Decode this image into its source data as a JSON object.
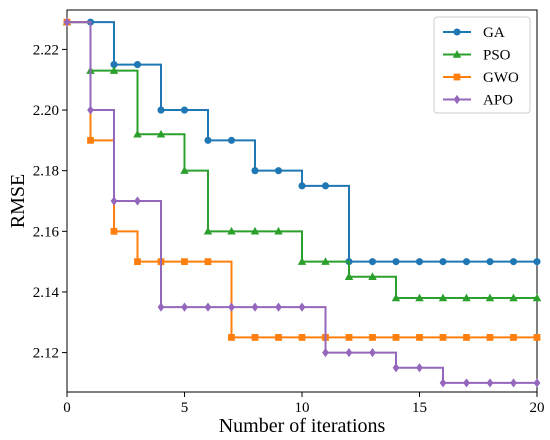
{
  "chart_data": {
    "type": "line",
    "xlabel": "Number of iterations",
    "ylabel": "RMSE",
    "xlim": [
      0,
      20
    ],
    "ylim": [
      2.107,
      2.233
    ],
    "xticks": [
      0,
      5,
      10,
      15,
      20
    ],
    "yticks": [
      2.12,
      2.14,
      2.16,
      2.18,
      2.2,
      2.22
    ],
    "ytick_labels": [
      "2.12",
      "2.14",
      "2.16",
      "2.18",
      "2.20",
      "2.22"
    ],
    "grid": false,
    "legend_position": "top-right",
    "x": [
      0,
      1,
      2,
      3,
      4,
      5,
      6,
      7,
      8,
      9,
      10,
      11,
      12,
      13,
      14,
      15,
      16,
      17,
      18,
      19,
      20
    ],
    "series": [
      {
        "name": "GA",
        "color": "#1f77b4",
        "marker": "circle",
        "values": [
          2.229,
          2.229,
          2.215,
          2.215,
          2.2,
          2.2,
          2.19,
          2.19,
          2.18,
          2.18,
          2.175,
          2.175,
          2.15,
          2.15,
          2.15,
          2.15,
          2.15,
          2.15,
          2.15,
          2.15,
          2.15
        ]
      },
      {
        "name": "PSO",
        "color": "#2ca02c",
        "marker": "triangle",
        "values": [
          2.229,
          2.213,
          2.213,
          2.192,
          2.192,
          2.18,
          2.16,
          2.16,
          2.16,
          2.16,
          2.15,
          2.15,
          2.145,
          2.145,
          2.138,
          2.138,
          2.138,
          2.138,
          2.138,
          2.138,
          2.138
        ]
      },
      {
        "name": "GWO",
        "color": "#ff7f0e",
        "marker": "square",
        "values": [
          2.229,
          2.19,
          2.16,
          2.15,
          2.15,
          2.15,
          2.15,
          2.125,
          2.125,
          2.125,
          2.125,
          2.125,
          2.125,
          2.125,
          2.125,
          2.125,
          2.125,
          2.125,
          2.125,
          2.125,
          2.125
        ]
      },
      {
        "name": "APO",
        "color": "#9467bd",
        "marker": "diamond",
        "values": [
          2.229,
          2.2,
          2.17,
          2.17,
          2.135,
          2.135,
          2.135,
          2.135,
          2.135,
          2.135,
          2.135,
          2.12,
          2.12,
          2.12,
          2.115,
          2.115,
          2.11,
          2.11,
          2.11,
          2.11,
          2.11
        ]
      }
    ]
  }
}
